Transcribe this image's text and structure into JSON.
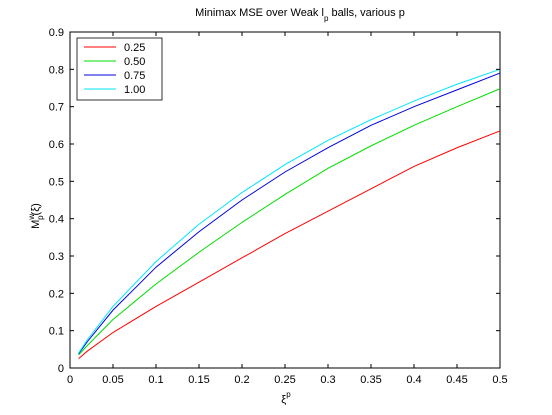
{
  "chart_data": {
    "type": "line",
    "title_main": "Minimax MSE over Weak l",
    "title_sub": "p",
    "title_rest": " balls, various p",
    "ylabel_main": "M",
    "ylabel_sup": "w",
    "ylabel_sub": "p",
    "ylabel_rest": "(ξ)",
    "xlabel_main": "ξ",
    "xlabel_sup": "p",
    "xlim": [
      0,
      0.5
    ],
    "ylim": [
      0,
      0.9
    ],
    "xticks": [
      "0",
      "0.05",
      "0.1",
      "0.15",
      "0.2",
      "0.25",
      "0.3",
      "0.35",
      "0.4",
      "0.45",
      "0.5"
    ],
    "yticks": [
      "0",
      "0.1",
      "0.2",
      "0.3",
      "0.4",
      "0.5",
      "0.6",
      "0.7",
      "0.8",
      "0.9"
    ],
    "legend_position": "top-left",
    "grid": false,
    "x": [
      0.01,
      0.02,
      0.05,
      0.1,
      0.15,
      0.2,
      0.25,
      0.3,
      0.35,
      0.4,
      0.45,
      0.5
    ],
    "series": [
      {
        "name": "0.25",
        "color": "#ff0000",
        "values": [
          0.025,
          0.045,
          0.095,
          0.165,
          0.23,
          0.295,
          0.36,
          0.42,
          0.48,
          0.54,
          0.59,
          0.635
        ]
      },
      {
        "name": "0.50",
        "color": "#00dd00",
        "values": [
          0.035,
          0.06,
          0.13,
          0.225,
          0.31,
          0.39,
          0.465,
          0.535,
          0.595,
          0.65,
          0.7,
          0.748
        ]
      },
      {
        "name": "0.75",
        "color": "#0000dd",
        "values": [
          0.038,
          0.07,
          0.155,
          0.27,
          0.365,
          0.45,
          0.525,
          0.59,
          0.65,
          0.7,
          0.745,
          0.79
        ]
      },
      {
        "name": "1.00",
        "color": "#00e5ff",
        "values": [
          0.04,
          0.075,
          0.165,
          0.285,
          0.385,
          0.47,
          0.545,
          0.61,
          0.665,
          0.715,
          0.76,
          0.8
        ]
      }
    ]
  }
}
